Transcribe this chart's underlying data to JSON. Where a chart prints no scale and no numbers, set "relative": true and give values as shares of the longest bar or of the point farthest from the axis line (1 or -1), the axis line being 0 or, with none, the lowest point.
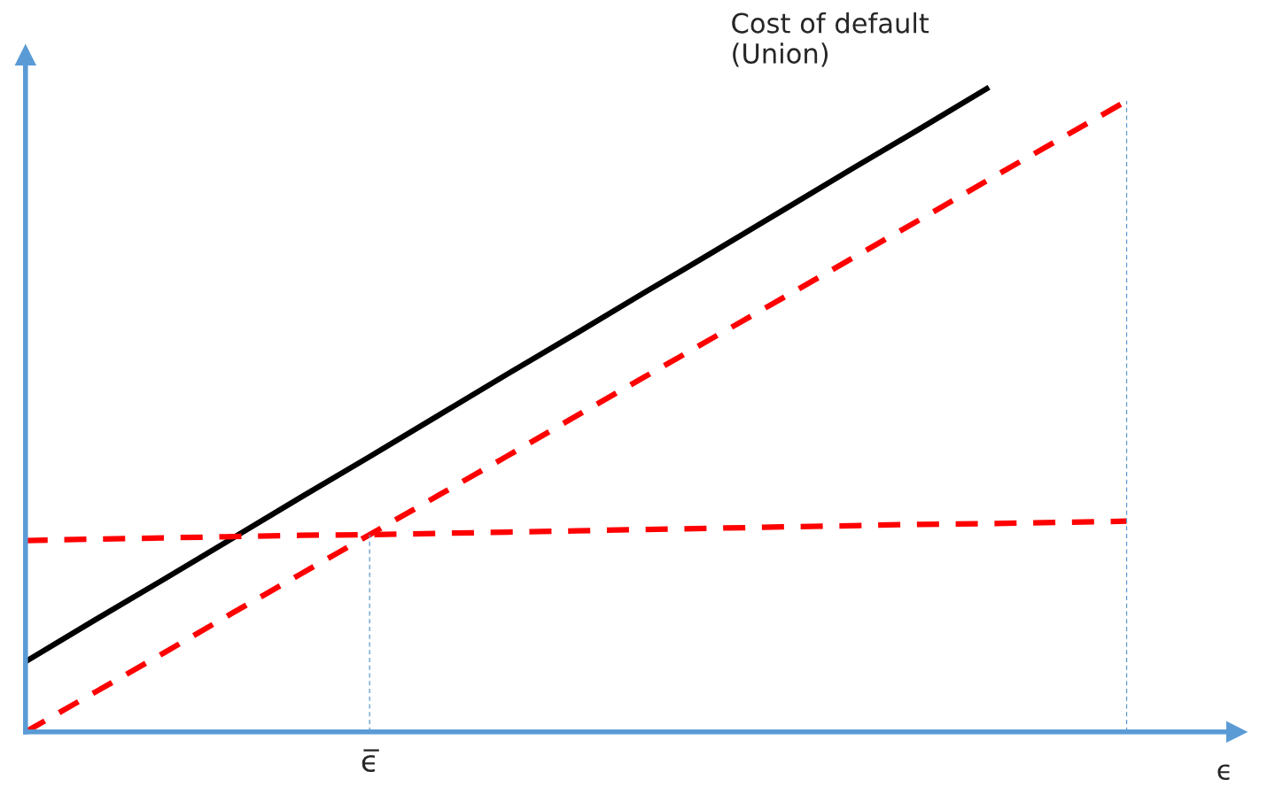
{
  "chart_data": {
    "type": "line",
    "relative": true,
    "xlabel": "ϵ",
    "categories": [
      null,
      null,
      null,
      null,
      null,
      null,
      null,
      null,
      null,
      null,
      null,
      null,
      null,
      null,
      null,
      null,
      null
    ],
    "series": [
      {
        "color": "#000000",
        "line_style": "solid",
        "values": [
          0.109,
          0.173,
          0.236,
          0.3,
          0.364,
          0.427,
          0.491,
          0.555,
          0.618,
          0.682,
          0.745,
          0.809,
          0.873,
          0.936,
          1.0,
          null,
          null
        ]
      },
      {
        "color": "#ff0000",
        "line_style": "dashed",
        "values": [
          0,
          0.061,
          0.122,
          0.184,
          0.245,
          0.306,
          0.367,
          0.428,
          0.49,
          0.551,
          0.612,
          0.673,
          0.734,
          0.795,
          0.857,
          0.918,
          0.979
        ]
      },
      {
        "color": "#ff0000",
        "line_style": "dashed",
        "values": [
          0.297,
          0.299,
          0.301,
          0.303,
          0.305,
          0.306,
          0.308,
          0.31,
          0.312,
          0.314,
          0.316,
          0.318,
          0.32,
          0.322,
          0.323,
          0.325,
          0.327
        ]
      }
    ],
    "annotations": [
      "Cost of default\n(Union)",
      "ϵ̅"
    ],
    "legend": false
  }
}
